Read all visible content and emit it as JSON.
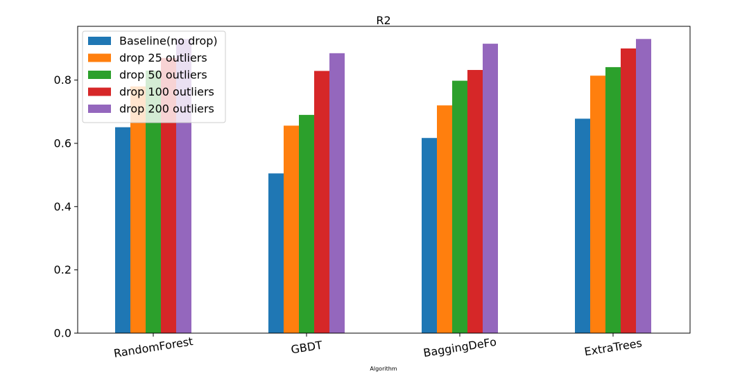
{
  "chart_data": {
    "type": "bar",
    "title": "R2",
    "xlabel": "Algorithm",
    "ylabel": "",
    "categories": [
      "RandomForest",
      "GBDT",
      "BaggingDeFo",
      "ExtraTrees"
    ],
    "ylim": [
      0,
      0.97
    ],
    "yticks": [
      "0.0",
      "0.2",
      "0.4",
      "0.6",
      "0.8"
    ],
    "ytick_values": [
      0.0,
      0.2,
      0.4,
      0.6,
      0.8
    ],
    "grid": false,
    "legend_position": "top-left",
    "series": [
      {
        "name": "Baseline(no drop)",
        "color": "#1f77b4",
        "values": [
          0.651,
          0.505,
          0.617,
          0.678
        ]
      },
      {
        "name": "drop 25 outliers",
        "color": "#ff7f0e",
        "values": [
          0.78,
          0.656,
          0.72,
          0.814
        ]
      },
      {
        "name": "drop 50 outliers",
        "color": "#2ca02c",
        "values": [
          0.83,
          0.69,
          0.798,
          0.841
        ]
      },
      {
        "name": "drop 100 outliers",
        "color": "#d62728",
        "values": [
          0.87,
          0.829,
          0.832,
          0.9
        ]
      },
      {
        "name": "drop 200 outliers",
        "color": "#9467bd",
        "values": [
          0.93,
          0.885,
          0.915,
          0.93
        ]
      }
    ]
  }
}
